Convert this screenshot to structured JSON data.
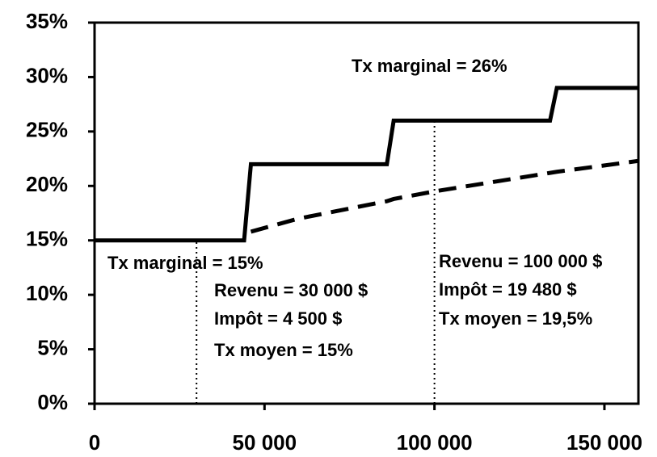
{
  "chart_data": {
    "type": "line",
    "x": [
      0,
      44000,
      46000,
      60000,
      86000,
      88000,
      100000,
      134000,
      136000,
      160000
    ],
    "series": [
      {
        "color": "#000000",
        "style": "solid",
        "values": [
          15,
          15,
          22,
          22,
          22,
          26,
          26,
          26,
          29,
          29
        ]
      },
      {
        "color": "#000000",
        "style": "dashed",
        "values": [
          null,
          null,
          15.8,
          17.0,
          18.6,
          18.8,
          19.5,
          21.2,
          21.3,
          22.3
        ]
      }
    ],
    "reference_lines": [
      {
        "x": 30000,
        "y": 15
      },
      {
        "x": 100000,
        "y": 26
      }
    ],
    "xlim": [
      0,
      160000
    ],
    "xticks": [
      0,
      {
        "value": 50000,
        "label": "50 000"
      },
      {
        "value": 100000,
        "label": "100 000"
      },
      {
        "value": 150000,
        "label": "150 000"
      }
    ],
    "ylim": [
      0,
      35
    ],
    "yticks": [
      {
        "value": 0,
        "label": "0%"
      },
      {
        "value": 5,
        "label": "5%"
      },
      {
        "value": 10,
        "label": "10%"
      },
      {
        "value": 15,
        "label": "15%"
      },
      {
        "value": 20,
        "label": "20%"
      },
      {
        "value": 25,
        "label": "25%"
      },
      {
        "value": 30,
        "label": "30%"
      },
      {
        "value": 35,
        "label": "35%"
      }
    ],
    "annotations": [
      "Tx marginal = 26%",
      "Tx marginal = 15%",
      "Revenu = 30 000 $",
      "Impôt = 4 500 $",
      "Tx moyen = 15%",
      "Revenu = 100 000 $",
      "Impôt = 19 480 $",
      "Tx moyen = 19,5%"
    ]
  }
}
